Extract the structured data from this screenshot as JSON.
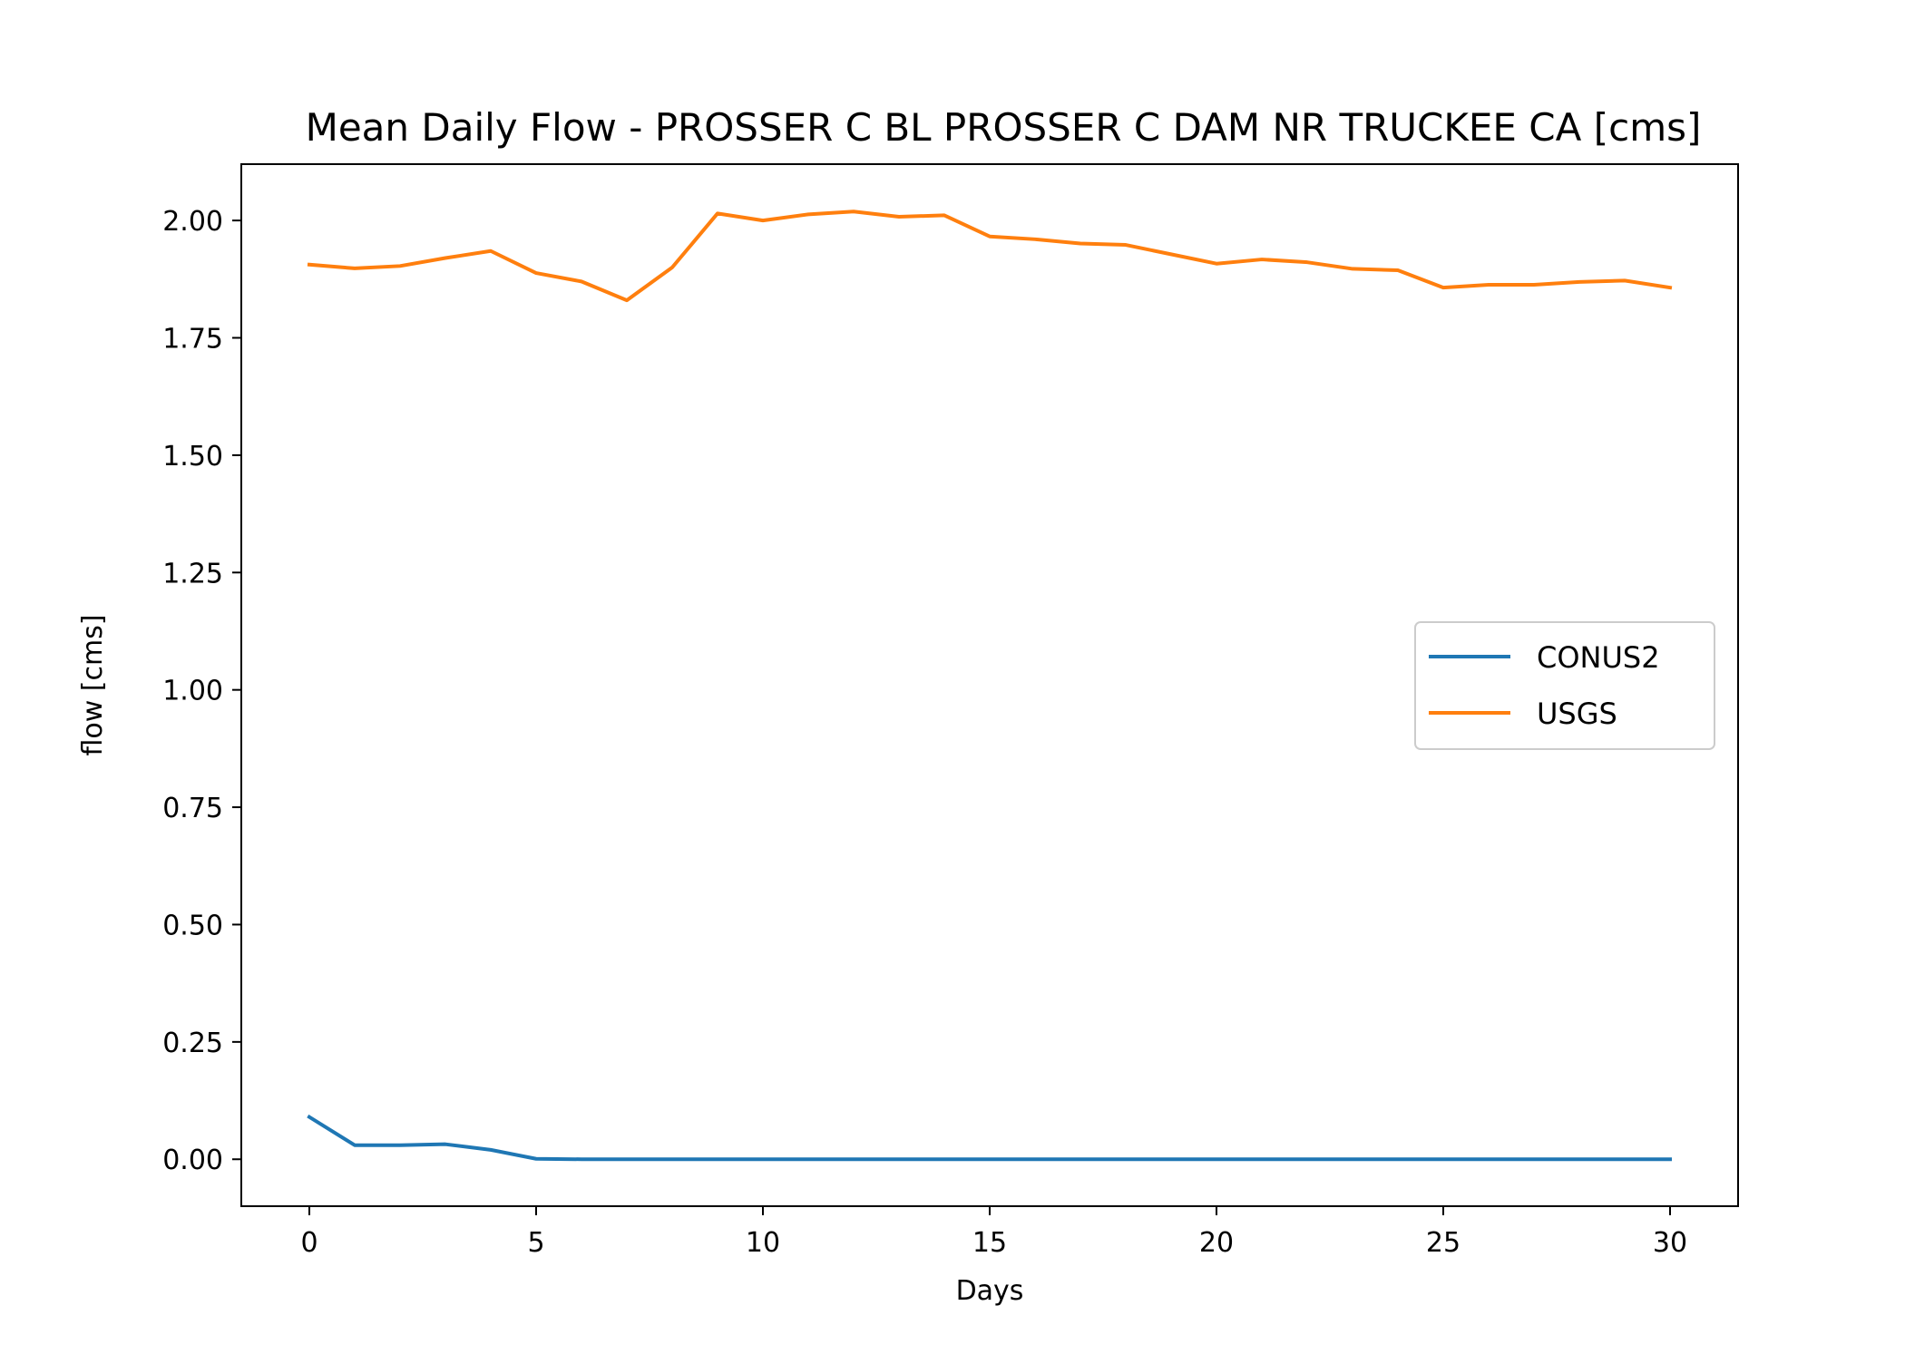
{
  "chart_data": {
    "type": "line",
    "title": "Mean Daily Flow - PROSSER C BL PROSSER C DAM NR TRUCKEE CA [cms]",
    "xlabel": "Days",
    "ylabel": "flow [cms]",
    "xlim": [
      -1.5,
      31.5
    ],
    "ylim": [
      -0.1,
      2.12
    ],
    "xticks": [
      0,
      5,
      10,
      15,
      20,
      25,
      30
    ],
    "xtick_labels": [
      "0",
      "5",
      "10",
      "15",
      "20",
      "25",
      "30"
    ],
    "yticks": [
      0.0,
      0.25,
      0.5,
      0.75,
      1.0,
      1.25,
      1.5,
      1.75,
      2.0
    ],
    "ytick_labels": [
      "0.00",
      "0.25",
      "0.50",
      "0.75",
      "1.00",
      "1.25",
      "1.50",
      "1.75",
      "2.00"
    ],
    "grid": false,
    "legend_position": "center-right",
    "x": [
      0,
      1,
      2,
      3,
      4,
      5,
      6,
      7,
      8,
      9,
      10,
      11,
      12,
      13,
      14,
      15,
      16,
      17,
      18,
      19,
      20,
      21,
      22,
      23,
      24,
      25,
      26,
      27,
      28,
      29,
      30
    ],
    "series": [
      {
        "name": "CONUS2",
        "color": "#1f77b4",
        "values": [
          0.09,
          0.03,
          0.03,
          0.032,
          0.02,
          0.001,
          0.0,
          0.0,
          0.0,
          0.0,
          0.0,
          0.0,
          0.0,
          0.0,
          0.0,
          0.0,
          0.0,
          0.0,
          0.0,
          0.0,
          0.0,
          0.0,
          0.0,
          0.0,
          0.0,
          0.0,
          0.0,
          0.0,
          0.0,
          0.0,
          0.0
        ]
      },
      {
        "name": "USGS",
        "color": "#ff7f0e",
        "values": [
          1.906,
          1.898,
          1.903,
          1.92,
          1.935,
          1.888,
          1.87,
          1.83,
          1.9,
          2.015,
          2.0,
          2.013,
          2.019,
          2.008,
          2.011,
          1.966,
          1.96,
          1.951,
          1.948,
          1.928,
          1.908,
          1.917,
          1.911,
          1.897,
          1.894,
          1.857,
          1.863,
          1.863,
          1.869,
          1.872,
          1.857
        ]
      }
    ]
  }
}
